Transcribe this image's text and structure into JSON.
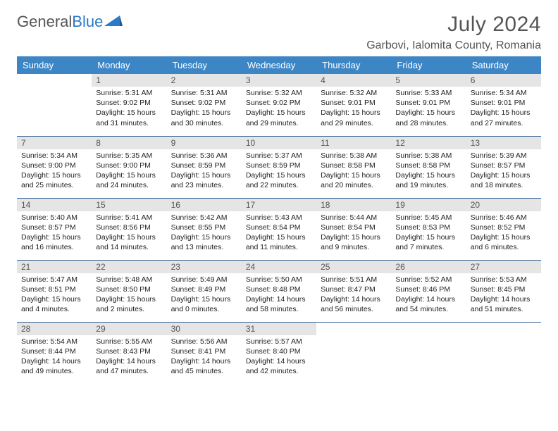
{
  "logo": {
    "word1": "General",
    "word2": "Blue"
  },
  "title": {
    "month": "July 2024",
    "location": "Garbovi, Ialomita County, Romania"
  },
  "colors": {
    "header_bg": "#3d86c6",
    "daynum_bg": "#e5e5e5",
    "row_border": "#2f5f8f",
    "logo_blue": "#2b7ac7",
    "text": "#222222",
    "muted": "#555555"
  },
  "weekdays": [
    "Sunday",
    "Monday",
    "Tuesday",
    "Wednesday",
    "Thursday",
    "Friday",
    "Saturday"
  ],
  "weeks": [
    [
      null,
      {
        "d": "1",
        "sr": "5:31 AM",
        "ss": "9:02 PM",
        "dl": "15 hours and 31 minutes."
      },
      {
        "d": "2",
        "sr": "5:31 AM",
        "ss": "9:02 PM",
        "dl": "15 hours and 30 minutes."
      },
      {
        "d": "3",
        "sr": "5:32 AM",
        "ss": "9:02 PM",
        "dl": "15 hours and 29 minutes."
      },
      {
        "d": "4",
        "sr": "5:32 AM",
        "ss": "9:01 PM",
        "dl": "15 hours and 29 minutes."
      },
      {
        "d": "5",
        "sr": "5:33 AM",
        "ss": "9:01 PM",
        "dl": "15 hours and 28 minutes."
      },
      {
        "d": "6",
        "sr": "5:34 AM",
        "ss": "9:01 PM",
        "dl": "15 hours and 27 minutes."
      }
    ],
    [
      {
        "d": "7",
        "sr": "5:34 AM",
        "ss": "9:00 PM",
        "dl": "15 hours and 25 minutes."
      },
      {
        "d": "8",
        "sr": "5:35 AM",
        "ss": "9:00 PM",
        "dl": "15 hours and 24 minutes."
      },
      {
        "d": "9",
        "sr": "5:36 AM",
        "ss": "8:59 PM",
        "dl": "15 hours and 23 minutes."
      },
      {
        "d": "10",
        "sr": "5:37 AM",
        "ss": "8:59 PM",
        "dl": "15 hours and 22 minutes."
      },
      {
        "d": "11",
        "sr": "5:38 AM",
        "ss": "8:58 PM",
        "dl": "15 hours and 20 minutes."
      },
      {
        "d": "12",
        "sr": "5:38 AM",
        "ss": "8:58 PM",
        "dl": "15 hours and 19 minutes."
      },
      {
        "d": "13",
        "sr": "5:39 AM",
        "ss": "8:57 PM",
        "dl": "15 hours and 18 minutes."
      }
    ],
    [
      {
        "d": "14",
        "sr": "5:40 AM",
        "ss": "8:57 PM",
        "dl": "15 hours and 16 minutes."
      },
      {
        "d": "15",
        "sr": "5:41 AM",
        "ss": "8:56 PM",
        "dl": "15 hours and 14 minutes."
      },
      {
        "d": "16",
        "sr": "5:42 AM",
        "ss": "8:55 PM",
        "dl": "15 hours and 13 minutes."
      },
      {
        "d": "17",
        "sr": "5:43 AM",
        "ss": "8:54 PM",
        "dl": "15 hours and 11 minutes."
      },
      {
        "d": "18",
        "sr": "5:44 AM",
        "ss": "8:54 PM",
        "dl": "15 hours and 9 minutes."
      },
      {
        "d": "19",
        "sr": "5:45 AM",
        "ss": "8:53 PM",
        "dl": "15 hours and 7 minutes."
      },
      {
        "d": "20",
        "sr": "5:46 AM",
        "ss": "8:52 PM",
        "dl": "15 hours and 6 minutes."
      }
    ],
    [
      {
        "d": "21",
        "sr": "5:47 AM",
        "ss": "8:51 PM",
        "dl": "15 hours and 4 minutes."
      },
      {
        "d": "22",
        "sr": "5:48 AM",
        "ss": "8:50 PM",
        "dl": "15 hours and 2 minutes."
      },
      {
        "d": "23",
        "sr": "5:49 AM",
        "ss": "8:49 PM",
        "dl": "15 hours and 0 minutes."
      },
      {
        "d": "24",
        "sr": "5:50 AM",
        "ss": "8:48 PM",
        "dl": "14 hours and 58 minutes."
      },
      {
        "d": "25",
        "sr": "5:51 AM",
        "ss": "8:47 PM",
        "dl": "14 hours and 56 minutes."
      },
      {
        "d": "26",
        "sr": "5:52 AM",
        "ss": "8:46 PM",
        "dl": "14 hours and 54 minutes."
      },
      {
        "d": "27",
        "sr": "5:53 AM",
        "ss": "8:45 PM",
        "dl": "14 hours and 51 minutes."
      }
    ],
    [
      {
        "d": "28",
        "sr": "5:54 AM",
        "ss": "8:44 PM",
        "dl": "14 hours and 49 minutes."
      },
      {
        "d": "29",
        "sr": "5:55 AM",
        "ss": "8:43 PM",
        "dl": "14 hours and 47 minutes."
      },
      {
        "d": "30",
        "sr": "5:56 AM",
        "ss": "8:41 PM",
        "dl": "14 hours and 45 minutes."
      },
      {
        "d": "31",
        "sr": "5:57 AM",
        "ss": "8:40 PM",
        "dl": "14 hours and 42 minutes."
      },
      null,
      null,
      null
    ]
  ],
  "labels": {
    "sunrise": "Sunrise: ",
    "sunset": "Sunset: ",
    "daylight": "Daylight: "
  }
}
